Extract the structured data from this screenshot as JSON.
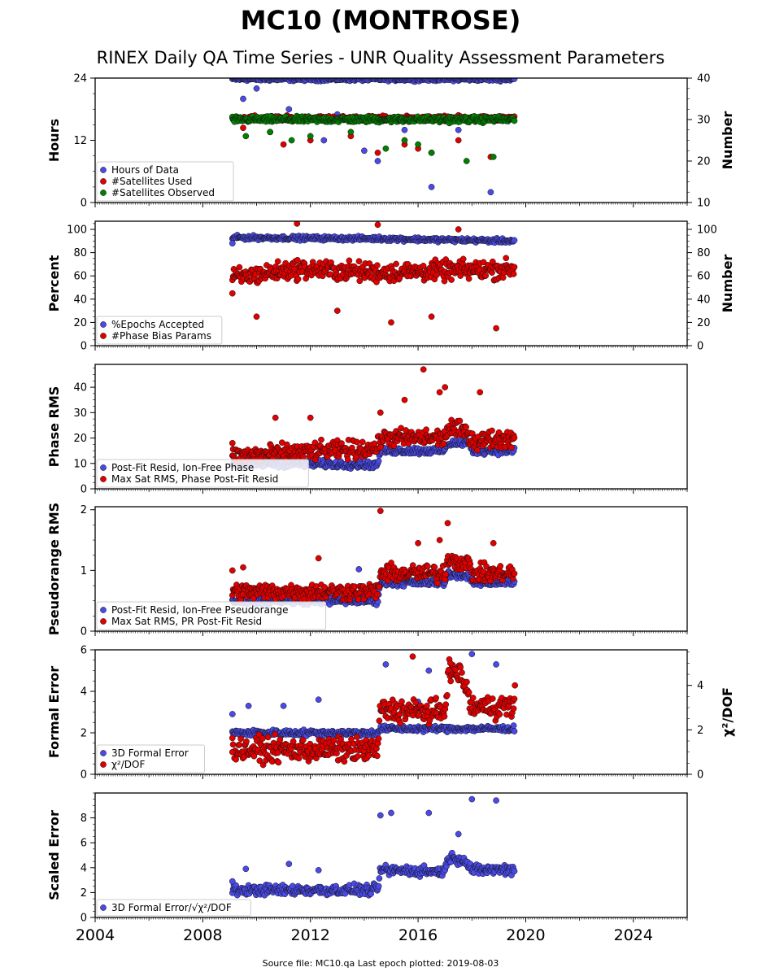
{
  "title": "MC10 (MONTROSE)",
  "subtitle": "RINEX Daily QA Time Series - UNR Quality Assessment Parameters",
  "footer": "Source file: MC10.qa Last epoch plotted: 2019-08-03",
  "colors": {
    "blue": "#4a4ae8",
    "red": "#e00000",
    "green": "#008000"
  },
  "chart_data": {
    "type": "scatter",
    "x_axis": {
      "range": [
        2004,
        2026
      ],
      "ticks": [
        2004,
        2008,
        2012,
        2016,
        2020,
        2024
      ],
      "tick_labels": [
        "2004",
        "2008",
        "2012",
        "2016",
        "2020",
        "2024"
      ]
    },
    "data_span": [
      2009.1,
      2019.6
    ],
    "panels": [
      {
        "ylabel": "Hours",
        "ylim": [
          0,
          24
        ],
        "yticks": [
          0,
          12,
          24
        ],
        "right_ylabel": "Number",
        "right_ylim": [
          10,
          40
        ],
        "right_yticks": [
          10,
          20,
          30,
          40
        ],
        "series": [
          {
            "name": "Hours of Data",
            "color": "blue",
            "axis": "left",
            "typical": [
              [
                2009.1,
                23.8
              ],
              [
                2019.6,
                23.8
              ]
            ],
            "spread": 0.3,
            "outliers": [
              [
                2009.5,
                20
              ],
              [
                2010.0,
                22
              ],
              [
                2011.2,
                18
              ],
              [
                2012.5,
                12
              ],
              [
                2013.0,
                17
              ],
              [
                2014.0,
                10
              ],
              [
                2014.5,
                8
              ],
              [
                2015.5,
                14
              ],
              [
                2016.5,
                3
              ],
              [
                2017.5,
                14
              ],
              [
                2018.7,
                2
              ]
            ]
          },
          {
            "name": "#Satellites Used",
            "color": "red",
            "axis": "right",
            "typical": [
              [
                2009.1,
                30.3
              ],
              [
                2019.6,
                30.3
              ]
            ],
            "spread": 0.5,
            "outliers": [
              [
                2009.5,
                28
              ],
              [
                2010.5,
                27
              ],
              [
                2011.0,
                24
              ],
              [
                2012.0,
                25
              ],
              [
                2013.5,
                26
              ],
              [
                2014.5,
                22
              ],
              [
                2015.5,
                24
              ],
              [
                2016.0,
                23
              ],
              [
                2016.5,
                22
              ],
              [
                2017.5,
                25
              ],
              [
                2018.7,
                21
              ]
            ]
          },
          {
            "name": "#Satellites Observed",
            "color": "green",
            "axis": "right",
            "typical": [
              [
                2009.1,
                30.0
              ],
              [
                2019.6,
                30.0
              ]
            ],
            "spread": 0.6,
            "outliers": [
              [
                2009.6,
                26
              ],
              [
                2010.5,
                27
              ],
              [
                2011.3,
                25
              ],
              [
                2012.0,
                26
              ],
              [
                2013.5,
                27
              ],
              [
                2014.8,
                23
              ],
              [
                2015.5,
                25
              ],
              [
                2016.0,
                24
              ],
              [
                2016.5,
                22
              ],
              [
                2017.8,
                20
              ],
              [
                2018.8,
                21
              ]
            ]
          }
        ],
        "legend": "lower-left"
      },
      {
        "ylabel": "Percent",
        "ylim": [
          0,
          107
        ],
        "yticks": [
          0,
          20,
          40,
          60,
          80,
          100
        ],
        "right_ylabel": "Number",
        "right_ylim": [
          0,
          107
        ],
        "right_yticks": [
          0,
          20,
          40,
          60,
          80,
          100
        ],
        "series": [
          {
            "name": "%Epochs Accepted",
            "color": "blue",
            "axis": "left",
            "typical": [
              [
                2009.1,
                93
              ],
              [
                2014.5,
                92
              ],
              [
                2019.6,
                90
              ]
            ],
            "spread": 1.5,
            "outliers": [
              [
                2009.1,
                88
              ]
            ]
          },
          {
            "name": "#Phase Bias Params",
            "color": "red",
            "axis": "right",
            "typical": [
              [
                2009.1,
                58
              ],
              [
                2011.5,
                66
              ],
              [
                2014.5,
                63
              ],
              [
                2019.6,
                66
              ]
            ],
            "spread": 7,
            "outliers": [
              [
                2009.1,
                45
              ],
              [
                2010.0,
                25
              ],
              [
                2011.5,
                105
              ],
              [
                2013.0,
                30
              ],
              [
                2014.5,
                104
              ],
              [
                2015.0,
                20
              ],
              [
                2016.5,
                25
              ],
              [
                2017.5,
                100
              ],
              [
                2018.9,
                15
              ]
            ]
          }
        ],
        "legend": "lower-left"
      },
      {
        "ylabel": "Phase RMS",
        "ylim": [
          0,
          49
        ],
        "yticks": [
          0,
          10,
          20,
          30,
          40
        ],
        "series": [
          {
            "name": "Post-Fit Resid, Ion-Free Phase",
            "color": "blue",
            "axis": "left",
            "typical": [
              [
                2009.1,
                10
              ],
              [
                2014.5,
                9.5
              ],
              [
                2014.6,
                15
              ],
              [
                2017.0,
                15
              ],
              [
                2017.1,
                18
              ],
              [
                2017.9,
                18
              ],
              [
                2018.0,
                15
              ],
              [
                2019.6,
                15
              ]
            ],
            "spread": 1.2,
            "outliers": []
          },
          {
            "name": "Max Sat RMS, Phase Post-Fit Resid",
            "color": "red",
            "axis": "left",
            "typical": [
              [
                2009.1,
                13
              ],
              [
                2014.5,
                16
              ],
              [
                2014.6,
                20
              ],
              [
                2017.0,
                20
              ],
              [
                2017.1,
                24
              ],
              [
                2017.9,
                22
              ],
              [
                2018.0,
                19
              ],
              [
                2019.6,
                20
              ]
            ],
            "spread": 3,
            "outliers": [
              [
                2009.1,
                18
              ],
              [
                2010.7,
                28
              ],
              [
                2012.0,
                28
              ],
              [
                2014.6,
                30
              ],
              [
                2015.5,
                35
              ],
              [
                2016.2,
                47
              ],
              [
                2016.8,
                38
              ],
              [
                2017.0,
                40
              ],
              [
                2018.3,
                38
              ]
            ]
          }
        ],
        "legend": "lower-left"
      },
      {
        "ylabel": "Pseudorange RMS",
        "ylim": [
          0,
          2.05
        ],
        "yticks": [
          0,
          1,
          2
        ],
        "series": [
          {
            "name": "Post-Fit Resid, Ion-Free Pseudorange",
            "color": "blue",
            "axis": "left",
            "typical": [
              [
                2009.1,
                0.5
              ],
              [
                2014.5,
                0.5
              ],
              [
                2014.6,
                0.8
              ],
              [
                2017.0,
                0.8
              ],
              [
                2017.1,
                0.95
              ],
              [
                2017.9,
                0.9
              ],
              [
                2018.0,
                0.8
              ],
              [
                2019.6,
                0.8
              ]
            ],
            "spread": 0.05,
            "outliers": [
              [
                2013.8,
                1.02
              ]
            ]
          },
          {
            "name": "Max Sat RMS, PR Post-Fit Resid",
            "color": "red",
            "axis": "left",
            "typical": [
              [
                2009.1,
                0.65
              ],
              [
                2014.5,
                0.65
              ],
              [
                2014.6,
                0.95
              ],
              [
                2017.0,
                0.95
              ],
              [
                2017.1,
                1.2
              ],
              [
                2017.9,
                1.1
              ],
              [
                2018.0,
                0.95
              ],
              [
                2019.6,
                0.95
              ]
            ],
            "spread": 0.12,
            "outliers": [
              [
                2009.1,
                1.0
              ],
              [
                2009.5,
                1.05
              ],
              [
                2012.3,
                1.2
              ],
              [
                2014.6,
                1.98
              ],
              [
                2016.0,
                1.45
              ],
              [
                2016.8,
                1.5
              ],
              [
                2017.1,
                1.78
              ],
              [
                2018.8,
                1.45
              ]
            ]
          }
        ],
        "legend": "lower-left"
      },
      {
        "ylabel": "Formal Error",
        "ylim": [
          0,
          6
        ],
        "yticks": [
          0,
          2,
          4,
          6
        ],
        "right_ylabel": "χ²/DOF",
        "right_ylim": [
          0,
          5.6
        ],
        "right_yticks": [
          0,
          2,
          4
        ],
        "series": [
          {
            "name": "3D Formal Error",
            "color": "blue",
            "axis": "left",
            "typical": [
              [
                2009.1,
                2.0
              ],
              [
                2014.5,
                2.0
              ],
              [
                2014.6,
                2.2
              ],
              [
                2019.6,
                2.2
              ]
            ],
            "spread": 0.12,
            "outliers": [
              [
                2009.1,
                2.9
              ],
              [
                2009.7,
                3.3
              ],
              [
                2011.0,
                3.3
              ],
              [
                2012.3,
                3.6
              ],
              [
                2014.8,
                5.3
              ],
              [
                2016.0,
                3.5
              ],
              [
                2016.4,
                5.0
              ],
              [
                2018.0,
                5.8
              ],
              [
                2018.9,
                5.3
              ]
            ]
          },
          {
            "name": "χ²/DOF",
            "color": "red",
            "axis": "right",
            "typical": [
              [
                2009.1,
                1.1
              ],
              [
                2014.5,
                1.1
              ],
              [
                2014.6,
                2.9
              ],
              [
                2017.0,
                2.8
              ],
              [
                2017.1,
                4.6
              ],
              [
                2017.6,
                4.5
              ],
              [
                2018.0,
                3.0
              ],
              [
                2019.6,
                3.1
              ]
            ],
            "spread": 0.45,
            "outliers": [
              [
                2009.1,
                1.0
              ],
              [
                2015.8,
                5.3
              ],
              [
                2017.2,
                5.0
              ],
              [
                2019.6,
                4.0
              ]
            ]
          }
        ],
        "legend": "lower-left"
      },
      {
        "ylabel": "Scaled Error",
        "ylim": [
          0,
          10
        ],
        "yticks": [
          0,
          2,
          4,
          6,
          8
        ],
        "series": [
          {
            "name": "3D Formal Error/√χ²/DOF",
            "color": "blue",
            "axis": "left",
            "typical": [
              [
                2009.1,
                2.2
              ],
              [
                2014.5,
                2.2
              ],
              [
                2014.6,
                3.8
              ],
              [
                2017.0,
                3.7
              ],
              [
                2017.1,
                4.8
              ],
              [
                2017.7,
                4.7
              ],
              [
                2018.0,
                3.8
              ],
              [
                2019.6,
                3.9
              ]
            ],
            "spread": 0.35,
            "outliers": [
              [
                2009.1,
                2.9
              ],
              [
                2009.6,
                3.9
              ],
              [
                2011.2,
                4.3
              ],
              [
                2012.3,
                3.8
              ],
              [
                2014.6,
                8.2
              ],
              [
                2015.0,
                8.4
              ],
              [
                2016.4,
                8.4
              ],
              [
                2017.5,
                6.7
              ],
              [
                2018.0,
                9.5
              ],
              [
                2018.9,
                9.4
              ]
            ]
          }
        ],
        "legend": "lower-left"
      }
    ]
  }
}
